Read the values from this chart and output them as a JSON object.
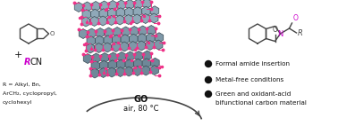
{
  "bg_color": "#ffffff",
  "bullet_points": [
    "Formal amide insertion",
    "Metal-free conditions",
    "Green and oxidant-acid\nbifunctional carbon material"
  ],
  "magenta": "#cc00cc",
  "dark_gray": "#444444",
  "black": "#111111",
  "go_sheet_colors": [
    "#8a9eaa",
    "#7a8e9a",
    "#6a7e8a"
  ],
  "oh_color": "#ee3388",
  "arrow_color": "#555555"
}
